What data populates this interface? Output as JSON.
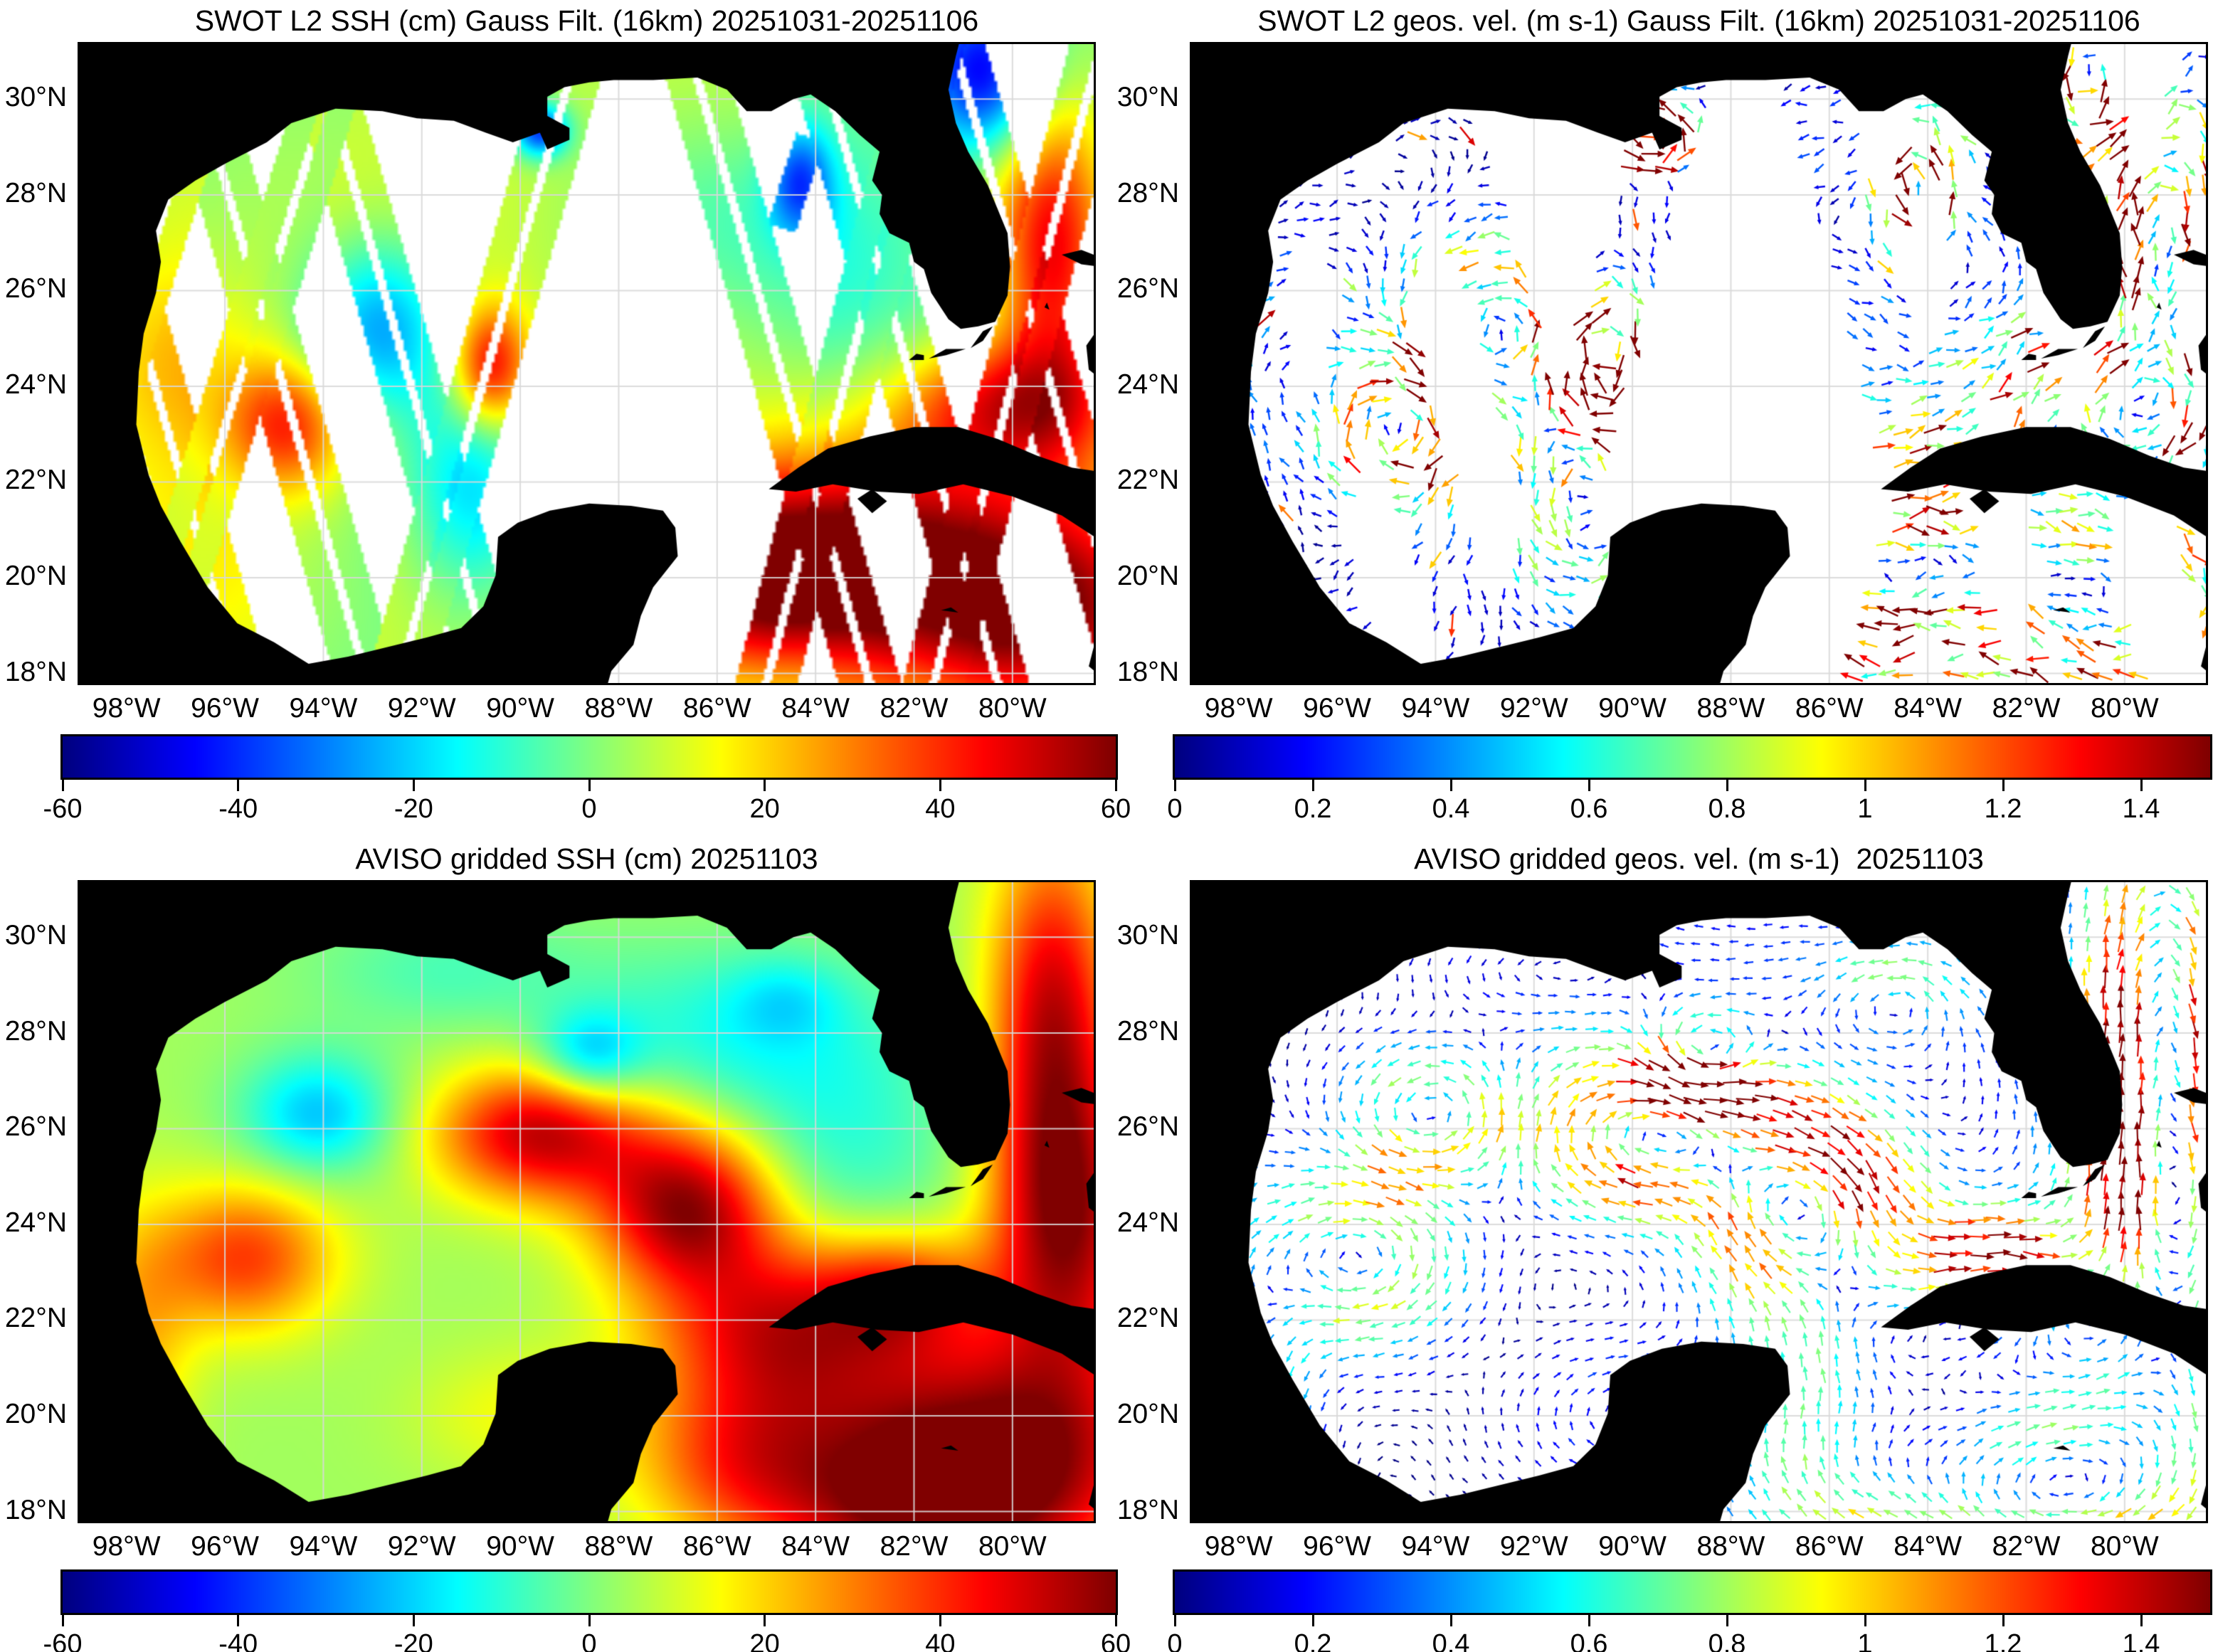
{
  "figure": {
    "description": "Four-panel comparison of SWOT L2 and AVISO gridded sea surface height and geostrophic velocity over the Gulf of Mexico"
  },
  "chart_data": {
    "type": "heatmap",
    "panels": [
      {
        "id": "swot-ssh",
        "type": "heatmap",
        "title": "SWOT L2 SSH (cm) Gauss Filt. (16km) 20251031-20251106",
        "field": "swot",
        "mask": "swaths",
        "colorbar": {
          "min": -60,
          "max": 60,
          "tick_values": [
            -60,
            -40,
            -20,
            0,
            20,
            40,
            60
          ],
          "tick_labels": [
            "-60",
            "-40",
            "-20",
            "0",
            "20",
            "40",
            "60"
          ],
          "colormap": "jet"
        }
      },
      {
        "id": "swot-vel",
        "type": "quiver",
        "title": "SWOT L2 geos. vel. (m s-1) Gauss Filt. (16km) 20251031-20251106",
        "field": "swot",
        "mask": "swaths",
        "grid_step_deg": 0.34,
        "colorbar": {
          "min": 0,
          "max": 1.5,
          "tick_values": [
            0,
            0.2,
            0.4,
            0.6,
            0.8,
            1,
            1.2,
            1.4
          ],
          "tick_labels": [
            "0",
            "0.2",
            "0.4",
            "0.6",
            "0.8",
            "1",
            "1.2",
            "1.4"
          ],
          "colormap": "jet"
        }
      },
      {
        "id": "aviso-ssh",
        "type": "heatmap",
        "title": "AVISO gridded SSH (cm) 20251103",
        "field": "aviso",
        "mask": "none",
        "colorbar": {
          "min": -60,
          "max": 60,
          "tick_values": [
            -60,
            -40,
            -20,
            0,
            20,
            40,
            60
          ],
          "tick_labels": [
            "-60",
            "-40",
            "-20",
            "0",
            "20",
            "40",
            "60"
          ],
          "colormap": "jet"
        }
      },
      {
        "id": "aviso-vel",
        "type": "quiver",
        "title": "AVISO gridded geos. vel. (m s-1)  20251103",
        "field": "aviso",
        "mask": "none",
        "grid_step_deg": 0.36,
        "colorbar": {
          "min": 0,
          "max": 1.5,
          "tick_values": [
            0,
            0.2,
            0.4,
            0.6,
            0.8,
            1,
            1.2,
            1.4
          ],
          "tick_labels": [
            "0",
            "0.2",
            "0.4",
            "0.6",
            "0.8",
            "1",
            "1.2",
            "1.4"
          ],
          "colormap": "jet"
        }
      }
    ],
    "axes": {
      "lon_min": -98.95,
      "lon_max": -78.35,
      "lat_min": 17.8,
      "lat_max": 31.15,
      "xtick_values": [
        -98,
        -96,
        -94,
        -92,
        -90,
        -88,
        -86,
        -84,
        -82,
        -80
      ],
      "xtick_labels": [
        "98°W",
        "96°W",
        "94°W",
        "92°W",
        "90°W",
        "88°W",
        "86°W",
        "84°W",
        "82°W",
        "80°W"
      ],
      "ytick_values": [
        30,
        28,
        26,
        24,
        22,
        20,
        18
      ],
      "ytick_labels": [
        "30°N",
        "28°N",
        "26°N",
        "24°N",
        "22°N",
        "20°N",
        "18°N"
      ],
      "grid": true,
      "grid_color": "#d8d8d8",
      "land_color": "#000000",
      "ocean_color": "#ffffff"
    },
    "fields": {
      "aviso": {
        "base": 4,
        "blobs": [
          [
            -86.6,
            24.4,
            1.3,
            1.2,
            52
          ],
          [
            -89.6,
            25.9,
            1.5,
            1.0,
            48
          ],
          [
            -95.6,
            23.3,
            1.3,
            1.1,
            34
          ],
          [
            -94.1,
            26.3,
            1.1,
            0.9,
            -26
          ],
          [
            -88.6,
            27.5,
            0.75,
            0.65,
            -24
          ],
          [
            -86.0,
            28.0,
            2.2,
            1.3,
            -14
          ],
          [
            -83.5,
            25.5,
            1.8,
            2.2,
            -14
          ],
          [
            -91.5,
            29.3,
            2.0,
            0.9,
            -10
          ],
          [
            -84.8,
            21.8,
            1.8,
            1.4,
            42
          ],
          [
            -80.5,
            19.3,
            2.6,
            1.8,
            55
          ],
          [
            -78.9,
            24.0,
            1.1,
            2.2,
            48
          ],
          [
            -79.2,
            28.5,
            0.9,
            2.6,
            45
          ],
          [
            -82.3,
            22.6,
            1.2,
            0.9,
            30
          ],
          [
            -90.0,
            20.0,
            1.5,
            1.0,
            10
          ],
          [
            -97.8,
            21.5,
            0.8,
            2.0,
            18
          ],
          [
            -82.0,
            17.9,
            2.2,
            1.2,
            30
          ],
          [
            -85.6,
            19.0,
            1.5,
            1.2,
            25
          ],
          [
            -84.6,
            28.7,
            0.8,
            0.6,
            -10
          ]
        ]
      },
      "swot": {
        "base": 3,
        "blobs": [
          [
            -94.7,
            23.2,
            0.9,
            1.0,
            38
          ],
          [
            -92.9,
            25.2,
            1.0,
            1.3,
            -34
          ],
          [
            -90.6,
            24.4,
            0.55,
            0.9,
            42
          ],
          [
            -91.0,
            22.0,
            0.9,
            1.6,
            -26
          ],
          [
            -89.6,
            29.35,
            0.4,
            0.4,
            -46
          ],
          [
            -84.3,
            28.3,
            0.45,
            0.8,
            -32
          ],
          [
            -80.6,
            30.6,
            0.9,
            1.2,
            -52
          ],
          [
            -79.2,
            27.0,
            0.8,
            2.2,
            46
          ],
          [
            -80.1,
            23.6,
            1.6,
            1.0,
            42
          ],
          [
            -83.0,
            20.6,
            2.2,
            1.6,
            46
          ],
          [
            -79.6,
            19.3,
            2.2,
            1.7,
            55
          ],
          [
            -85.3,
            19.9,
            1.5,
            1.3,
            40
          ],
          [
            -86.9,
            21.2,
            1.0,
            0.8,
            30
          ],
          [
            -96.5,
            20.3,
            2.0,
            2.0,
            10
          ],
          [
            -94.0,
            27.0,
            3.0,
            2.5,
            6
          ],
          [
            -97.0,
            24.5,
            1.2,
            1.5,
            14
          ],
          [
            -88.0,
            18.6,
            1.5,
            1.0,
            12
          ],
          [
            -86.0,
            27.5,
            2.0,
            1.5,
            -12
          ],
          [
            -83.3,
            26.0,
            1.5,
            2.0,
            -10
          ]
        ]
      }
    },
    "swot_swaths": {
      "half_width_deg": 0.62,
      "gap_deg": 0.085,
      "tracks": [
        {
          "a": [
            -100.2,
            17.8
          ],
          "b": [
            -96.2,
            31.15
          ]
        },
        {
          "a": [
            -97.6,
            17.8
          ],
          "b": [
            -93.6,
            31.15
          ]
        },
        {
          "a": [
            -92.5,
            17.8
          ],
          "b": [
            -88.8,
            31.15
          ]
        },
        {
          "a": [
            -85.0,
            17.8
          ],
          "b": [
            -81.6,
            31.15
          ]
        },
        {
          "a": [
            -81.6,
            17.8
          ],
          "b": [
            -78.2,
            31.15
          ]
        },
        {
          "a": [
            -99.4,
            31.15
          ],
          "b": [
            -95.7,
            17.8
          ]
        },
        {
          "a": [
            -96.8,
            31.15
          ],
          "b": [
            -93.1,
            17.8
          ]
        },
        {
          "a": [
            -94.2,
            31.15
          ],
          "b": [
            -90.5,
            17.8
          ]
        },
        {
          "a": [
            -86.6,
            31.15
          ],
          "b": [
            -82.9,
            17.8
          ]
        },
        {
          "a": [
            -84.0,
            31.15
          ],
          "b": [
            -80.3,
            17.8
          ]
        },
        {
          "a": [
            -81.2,
            31.15
          ],
          "b": [
            -77.5,
            17.8
          ]
        },
        {
          "a": [
            -84.7,
            27.3
          ],
          "b": [
            -84.1,
            29.2
          ],
          "half_width_deg": 0.3,
          "gap_deg": 0.0
        }
      ],
      "ssh_bias_cm": [
        2.4,
        -3.2,
        4.0,
        0,
        -2.4,
        3.2,
        -4.0,
        1.6,
        4.8,
        -1.6,
        2.4,
        0
      ]
    },
    "velocity": {
      "geostrophic_scale_mps_per_cm_deg": 0.045,
      "speed_max": 1.5
    },
    "land_polygons": [
      [
        [
          -100,
          31.5
        ],
        [
          -81.0,
          31.5
        ],
        [
          -81.15,
          30.9
        ],
        [
          -81.3,
          30.2
        ],
        [
          -81.15,
          29.5
        ],
        [
          -80.9,
          28.9
        ],
        [
          -80.5,
          28.2
        ],
        [
          -80.1,
          27.2
        ],
        [
          -80.05,
          26.5
        ],
        [
          -80.1,
          25.9
        ],
        [
          -80.35,
          25.35
        ],
        [
          -80.7,
          25.25
        ],
        [
          -81.05,
          25.2
        ],
        [
          -81.3,
          25.4
        ],
        [
          -81.65,
          25.95
        ],
        [
          -81.8,
          26.45
        ],
        [
          -82.0,
          26.6
        ],
        [
          -82.1,
          27.0
        ],
        [
          -82.5,
          27.2
        ],
        [
          -82.7,
          27.6
        ],
        [
          -82.65,
          28.0
        ],
        [
          -82.85,
          28.3
        ],
        [
          -82.7,
          28.9
        ],
        [
          -83.1,
          29.25
        ],
        [
          -83.6,
          29.75
        ],
        [
          -84.1,
          30.1
        ],
        [
          -84.45,
          30.0
        ],
        [
          -84.9,
          29.75
        ],
        [
          -85.4,
          29.75
        ],
        [
          -85.8,
          30.2
        ],
        [
          -86.4,
          30.45
        ],
        [
          -87.3,
          30.4
        ],
        [
          -88.1,
          30.4
        ],
        [
          -88.6,
          30.35
        ],
        [
          -89.1,
          30.25
        ],
        [
          -89.45,
          30.05
        ],
        [
          -89.45,
          29.65
        ],
        [
          -89.0,
          29.4
        ],
        [
          -89.0,
          29.15
        ],
        [
          -89.45,
          28.95
        ],
        [
          -89.6,
          29.3
        ],
        [
          -90.15,
          29.1
        ],
        [
          -90.7,
          29.3
        ],
        [
          -91.35,
          29.55
        ],
        [
          -92.1,
          29.6
        ],
        [
          -92.8,
          29.75
        ],
        [
          -93.75,
          29.8
        ],
        [
          -94.65,
          29.5
        ],
        [
          -95.15,
          29.1
        ],
        [
          -96.0,
          28.65
        ],
        [
          -96.6,
          28.3
        ],
        [
          -97.15,
          27.9
        ],
        [
          -97.4,
          27.25
        ],
        [
          -97.3,
          26.6
        ],
        [
          -97.4,
          25.95
        ],
        [
          -97.65,
          25.1
        ],
        [
          -97.75,
          24.3
        ],
        [
          -97.8,
          23.2
        ],
        [
          -97.55,
          22.15
        ],
        [
          -97.3,
          21.5
        ],
        [
          -96.9,
          20.75
        ],
        [
          -96.35,
          19.8
        ],
        [
          -95.75,
          19.05
        ],
        [
          -95.0,
          18.65
        ],
        [
          -94.3,
          18.2
        ],
        [
          -93.5,
          18.35
        ],
        [
          -92.7,
          18.55
        ],
        [
          -91.9,
          18.75
        ],
        [
          -91.2,
          18.95
        ],
        [
          -90.75,
          19.4
        ],
        [
          -90.5,
          20.05
        ],
        [
          -90.45,
          20.85
        ],
        [
          -90.05,
          21.15
        ],
        [
          -89.4,
          21.4
        ],
        [
          -88.6,
          21.55
        ],
        [
          -87.75,
          21.5
        ],
        [
          -87.1,
          21.4
        ],
        [
          -86.85,
          21.05
        ],
        [
          -86.8,
          20.45
        ],
        [
          -87.3,
          19.8
        ],
        [
          -87.55,
          19.2
        ],
        [
          -87.7,
          18.6
        ],
        [
          -88.15,
          18.05
        ],
        [
          -88.3,
          17.5
        ],
        [
          -100,
          17.5
        ]
      ],
      [
        [
          -84.95,
          21.85
        ],
        [
          -84.35,
          22.3
        ],
        [
          -83.75,
          22.7
        ],
        [
          -82.9,
          22.95
        ],
        [
          -82.0,
          23.15
        ],
        [
          -81.1,
          23.15
        ],
        [
          -80.3,
          22.9
        ],
        [
          -79.5,
          22.55
        ],
        [
          -78.8,
          22.3
        ],
        [
          -78.1,
          22.2
        ],
        [
          -78.1,
          20.7
        ],
        [
          -79.0,
          21.3
        ],
        [
          -80.0,
          21.7
        ],
        [
          -81.0,
          21.95
        ],
        [
          -81.9,
          21.75
        ],
        [
          -82.75,
          21.8
        ],
        [
          -83.65,
          21.95
        ],
        [
          -84.4,
          21.8
        ]
      ],
      [
        [
          -83.15,
          21.65
        ],
        [
          -82.85,
          21.85
        ],
        [
          -82.55,
          21.6
        ],
        [
          -82.85,
          21.35
        ]
      ],
      [
        [
          -80.4,
          25.25
        ],
        [
          -80.6,
          24.95
        ],
        [
          -80.85,
          24.8
        ],
        [
          -80.6,
          25.15
        ]
      ],
      [
        [
          -80.95,
          24.78
        ],
        [
          -81.35,
          24.65
        ],
        [
          -81.7,
          24.58
        ],
        [
          -81.35,
          24.78
        ]
      ],
      [
        [
          -81.8,
          24.55
        ],
        [
          -82.1,
          24.55
        ],
        [
          -81.95,
          24.68
        ],
        [
          -81.8,
          24.65
        ]
      ],
      [
        [
          -79.0,
          26.75
        ],
        [
          -78.6,
          26.55
        ],
        [
          -78.25,
          26.5
        ],
        [
          -78.1,
          26.65
        ],
        [
          -78.6,
          26.85
        ]
      ],
      [
        [
          -78.2,
          26.45
        ],
        [
          -78.0,
          26.0
        ],
        [
          -78.1,
          26.5
        ]
      ],
      [
        [
          -78.3,
          25.15
        ],
        [
          -78.5,
          24.85
        ],
        [
          -78.45,
          24.35
        ],
        [
          -78.15,
          24.1
        ],
        [
          -78.1,
          25.0
        ]
      ],
      [
        [
          -79.3,
          25.75
        ],
        [
          -79.25,
          25.6
        ],
        [
          -79.35,
          25.65
        ]
      ],
      [
        [
          -81.45,
          19.32
        ],
        [
          -81.1,
          19.27
        ],
        [
          -81.25,
          19.38
        ]
      ],
      [
        [
          -78.35,
          18.55
        ],
        [
          -78.0,
          18.6
        ],
        [
          -77.9,
          18.2
        ],
        [
          -78.1,
          17.85
        ],
        [
          -78.45,
          18.15
        ]
      ]
    ]
  }
}
